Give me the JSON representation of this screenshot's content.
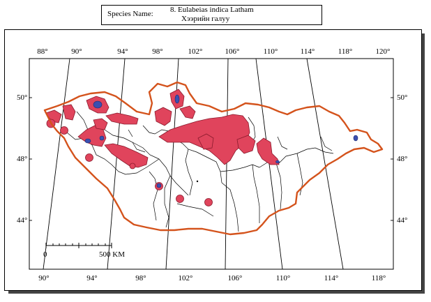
{
  "header": {
    "label": "Species Name:",
    "latin_name": "8. Eulabeias indica  Latham",
    "local_name": "Хээрийн галуу"
  },
  "map": {
    "top_longitudes": [
      "88°",
      "90°",
      "94°",
      "98°",
      "102°",
      "106°",
      "110°",
      "114°",
      "118°",
      "120°"
    ],
    "bottom_longitudes": [
      "90°",
      "94°",
      "98°",
      "102°",
      "106°",
      "110°",
      "114°",
      "118°"
    ],
    "left_latitudes": [
      "50°",
      "48°",
      "44°"
    ],
    "right_latitudes": [
      "50°",
      "48°",
      "44°"
    ],
    "scale_bar": {
      "start_label": "0",
      "end_label": "500 KM"
    }
  },
  "colors": {
    "border": "#d4531c",
    "range_fill": "#e0445c",
    "range_core": "#3b4fb0",
    "internal_lines": "#000000"
  }
}
